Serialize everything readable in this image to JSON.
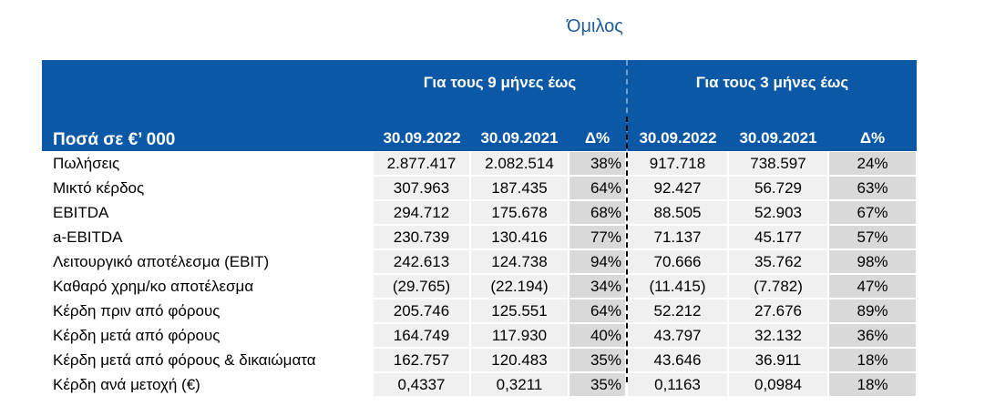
{
  "group_title": "Όμιλος",
  "header": {
    "amount_label": "Ποσά  σε €’ 000",
    "span_9m": "Για τους 9 μήνες έως",
    "span_3m": "Για τους 3 μήνες έως",
    "columns": [
      "30.09.2022",
      "30.09.2021",
      "Δ%",
      "30.09.2022",
      "30.09.2021",
      "Δ%"
    ]
  },
  "rows": [
    {
      "label": "Πωλήσεις",
      "values": [
        "2.877.417",
        "2.082.514",
        "38%",
        "917.718",
        "738.597",
        "24%"
      ]
    },
    {
      "label": "Μικτό κέρδος",
      "values": [
        "307.963",
        "187.435",
        "64%",
        "92.427",
        "56.729",
        "63%"
      ]
    },
    {
      "label": "EBITDA",
      "values": [
        "294.712",
        "175.678",
        "68%",
        "88.505",
        "52.903",
        "67%"
      ]
    },
    {
      "label": "a-EBITDA",
      "values": [
        "230.739",
        "130.416",
        "77%",
        "71.137",
        "45.177",
        "57%"
      ]
    },
    {
      "label": "Λειτουργικό αποτέλεσμα (EBIT)",
      "values": [
        "242.613",
        "124.738",
        "94%",
        "70.666",
        "35.762",
        "98%"
      ]
    },
    {
      "label": "Καθαρό χρημ/κο αποτέλεσμα",
      "values": [
        "(29.765)",
        "(22.194)",
        "34%",
        "(11.415)",
        "(7.782)",
        "47%"
      ]
    },
    {
      "label": "Κέρδη πριν από φόρους",
      "values": [
        "205.746",
        "125.551",
        "64%",
        "52.212",
        "27.676",
        "89%"
      ]
    },
    {
      "label": "Κέρδη μετά από φόρους",
      "values": [
        "164.749",
        "117.930",
        "40%",
        "43.797",
        "32.132",
        "36%"
      ]
    },
    {
      "label": "Κέρδη μετά από φόρους & δικαιώματα",
      "values": [
        "162.757",
        "120.483",
        "35%",
        "43.646",
        "36.911",
        "18%"
      ]
    },
    {
      "label": "Κέρδη ανά μετοχή (€)",
      "values": [
        "0,4337",
        "0,3211",
        "35%",
        "0,1163",
        "0,0984",
        "18%"
      ]
    }
  ]
}
